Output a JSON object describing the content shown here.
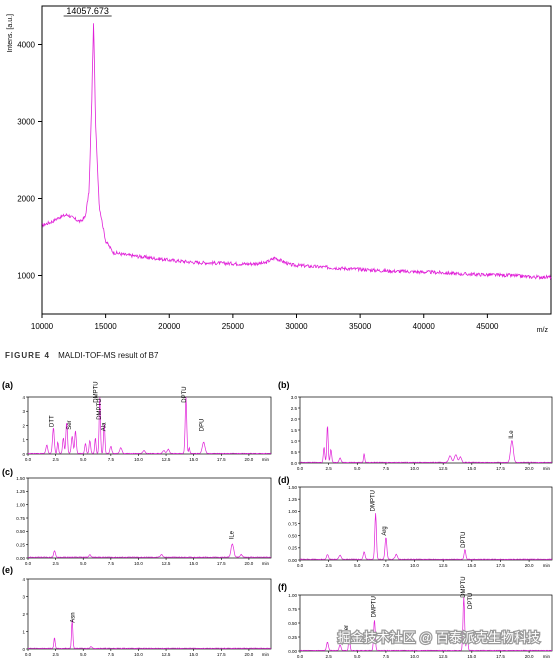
{
  "colors": {
    "trace": "#e020d8",
    "axis": "#000000",
    "grid": "#000000",
    "caption_label": "#333333"
  },
  "figure_caption": {
    "label": "FIGURE 4",
    "text": "MALDI-TOF-MS result of B7"
  },
  "watermark": {
    "text": "掘金技术社区 @ 百泰派克生物科技"
  },
  "chart_data": [
    {
      "id": "maldi",
      "type": "line",
      "ylabel": "Intens. [a.u.]",
      "xunit": "m/z",
      "xlim": [
        10000,
        50000
      ],
      "ylim": [
        500,
        4500
      ],
      "xticks": [
        10000,
        15000,
        20000,
        25000,
        30000,
        35000,
        40000,
        45000
      ],
      "yticks": [
        1000,
        2000,
        3000,
        4000
      ],
      "peak_label": "14057.673",
      "peak_x": 14057.673,
      "peak_y": 4350,
      "points": [
        [
          10000,
          1650
        ],
        [
          10800,
          1700
        ],
        [
          11400,
          1760
        ],
        [
          12000,
          1790
        ],
        [
          12500,
          1740
        ],
        [
          13000,
          1700
        ],
        [
          13400,
          1760
        ],
        [
          13700,
          2100
        ],
        [
          13900,
          3200
        ],
        [
          14057.673,
          4350
        ],
        [
          14200,
          3000
        ],
        [
          14500,
          1900
        ],
        [
          15000,
          1450
        ],
        [
          15600,
          1300
        ],
        [
          16500,
          1270
        ],
        [
          17500,
          1250
        ],
        [
          18500,
          1230
        ],
        [
          20000,
          1200
        ],
        [
          22000,
          1170
        ],
        [
          24000,
          1160
        ],
        [
          26000,
          1150
        ],
        [
          27500,
          1160
        ],
        [
          28300,
          1230
        ],
        [
          28700,
          1200
        ],
        [
          29500,
          1140
        ],
        [
          31000,
          1120
        ],
        [
          33000,
          1100
        ],
        [
          35000,
          1080
        ],
        [
          37000,
          1060
        ],
        [
          39000,
          1050
        ],
        [
          41000,
          1040
        ],
        [
          43000,
          1020
        ],
        [
          45000,
          1010
        ],
        [
          47000,
          1000
        ],
        [
          48500,
          980
        ],
        [
          50000,
          980
        ]
      ]
    },
    {
      "id": "a",
      "panel_label": "(a)",
      "type": "line",
      "xlim": [
        0,
        22
      ],
      "ylim": [
        0,
        4
      ],
      "xticks": [
        0.0,
        2.5,
        5.0,
        7.5,
        10.0,
        12.5,
        15.0,
        17.5,
        20.0
      ],
      "xtick_labels": [
        "0.0",
        "2.5",
        "5.0",
        "7.5",
        "10.0",
        "12.5",
        "15.0",
        "17.5",
        "20.0"
      ],
      "yticks": [
        0,
        1,
        2,
        3,
        4
      ],
      "ytick_labels": [
        "0",
        "1",
        "2",
        "3",
        "4"
      ],
      "xunit": "min",
      "annotations": [
        {
          "x": 2.3,
          "y": 1.9,
          "text": "DTT"
        },
        {
          "x": 3.9,
          "y": 1.7,
          "text": "Ser"
        },
        {
          "x": 6.3,
          "y": 3.6,
          "text": "DMPTU"
        },
        {
          "x": 6.6,
          "y": 2.4,
          "text": "DMPTU"
        },
        {
          "x": 7.0,
          "y": 1.6,
          "text": "Ala"
        },
        {
          "x": 14.3,
          "y": 3.6,
          "text": "DPTU"
        },
        {
          "x": 15.9,
          "y": 1.6,
          "text": "DPU"
        }
      ],
      "peaks": [
        [
          1.7,
          0.6,
          0.08
        ],
        [
          2.3,
          1.8,
          0.08
        ],
        [
          2.7,
          0.8,
          0.06
        ],
        [
          3.2,
          1.1,
          0.07
        ],
        [
          3.5,
          2.2,
          0.07
        ],
        [
          4.0,
          1.2,
          0.08
        ],
        [
          4.3,
          1.6,
          0.07
        ],
        [
          5.2,
          0.7,
          0.07
        ],
        [
          5.6,
          0.9,
          0.07
        ],
        [
          6.1,
          1.1,
          0.06
        ],
        [
          6.5,
          4.0,
          0.06
        ],
        [
          6.9,
          2.1,
          0.06
        ],
        [
          7.5,
          0.5,
          0.08
        ],
        [
          8.4,
          0.4,
          0.1
        ],
        [
          10.5,
          0.2,
          0.1
        ],
        [
          12.3,
          0.2,
          0.1
        ],
        [
          12.7,
          0.3,
          0.1
        ],
        [
          14.3,
          4.0,
          0.07
        ],
        [
          14.6,
          0.4,
          0.05
        ],
        [
          15.9,
          0.8,
          0.12
        ]
      ]
    },
    {
      "id": "b",
      "panel_label": "(b)",
      "type": "line",
      "xlim": [
        0,
        22
      ],
      "ylim": [
        0,
        3
      ],
      "xticks": [
        0.0,
        2.5,
        5.0,
        7.5,
        10.0,
        12.5,
        15.0,
        17.5,
        20.0
      ],
      "xtick_labels": [
        "0.0",
        "2.5",
        "5.0",
        "7.5",
        "10.0",
        "12.5",
        "15.0",
        "17.5",
        "20.0"
      ],
      "yticks": [
        0,
        0.5,
        1.0,
        1.5,
        2.0,
        2.5,
        3.0
      ],
      "ytick_labels": [
        "0.0",
        "0.5",
        "1.0",
        "1.5",
        "2.0",
        "2.5",
        "3.0"
      ],
      "xunit": "min",
      "annotations": [
        {
          "x": 18.6,
          "y": 1.1,
          "text": "ILe"
        }
      ],
      "peaks": [
        [
          2.1,
          0.7,
          0.06
        ],
        [
          2.4,
          1.7,
          0.06
        ],
        [
          2.7,
          0.6,
          0.06
        ],
        [
          3.5,
          0.2,
          0.08
        ],
        [
          5.6,
          0.4,
          0.05
        ],
        [
          13.1,
          0.3,
          0.12
        ],
        [
          13.6,
          0.35,
          0.12
        ],
        [
          14.0,
          0.25,
          0.1
        ],
        [
          18.5,
          1.0,
          0.12
        ]
      ]
    },
    {
      "id": "c",
      "panel_label": "(c)",
      "type": "line",
      "xlim": [
        0,
        22
      ],
      "ylim": [
        0,
        1.5
      ],
      "xticks": [
        0.0,
        2.5,
        5.0,
        7.5,
        10.0,
        12.5,
        15.0,
        17.5,
        20.0
      ],
      "xtick_labels": [
        "0.0",
        "2.5",
        "5.0",
        "7.5",
        "10.0",
        "12.5",
        "15.0",
        "17.5",
        "20.0"
      ],
      "yticks": [
        0,
        0.25,
        0.5,
        0.75,
        1.0,
        1.25,
        1.5
      ],
      "ytick_labels": [
        "0.00",
        "0.25",
        "0.50",
        "0.75",
        "1.00",
        "1.25",
        "1.50"
      ],
      "xunit": "min",
      "annotations": [
        {
          "x": 18.6,
          "y": 0.35,
          "text": "ILe"
        }
      ],
      "peaks": [
        [
          2.4,
          0.12,
          0.08
        ],
        [
          5.6,
          0.05,
          0.08
        ],
        [
          12.1,
          0.05,
          0.1
        ],
        [
          18.5,
          0.25,
          0.12
        ],
        [
          19.3,
          0.05,
          0.1
        ]
      ]
    },
    {
      "id": "d",
      "panel_label": "(d)",
      "type": "line",
      "xlim": [
        0,
        22
      ],
      "ylim": [
        0,
        1.5
      ],
      "xticks": [
        0.0,
        2.5,
        5.0,
        7.5,
        10.0,
        12.5,
        15.0,
        17.5,
        20.0
      ],
      "xtick_labels": [
        "0.0",
        "2.5",
        "5.0",
        "7.5",
        "10.0",
        "12.5",
        "15.0",
        "17.5",
        "20.0"
      ],
      "yticks": [
        0,
        0.25,
        0.5,
        0.75,
        1.0,
        1.25,
        1.5
      ],
      "ytick_labels": [
        "0.00",
        "0.25",
        "0.50",
        "0.75",
        "1.00",
        "1.25",
        "1.50"
      ],
      "xunit": "min",
      "annotations": [
        {
          "x": 6.5,
          "y": 1.0,
          "text": "DMPTU"
        },
        {
          "x": 7.5,
          "y": 0.5,
          "text": "Arg"
        },
        {
          "x": 14.4,
          "y": 0.25,
          "text": "DPTU"
        }
      ],
      "peaks": [
        [
          2.4,
          0.1,
          0.08
        ],
        [
          3.5,
          0.08,
          0.1
        ],
        [
          5.6,
          0.15,
          0.08
        ],
        [
          6.6,
          0.95,
          0.07
        ],
        [
          7.5,
          0.45,
          0.08
        ],
        [
          8.4,
          0.1,
          0.1
        ],
        [
          14.4,
          0.2,
          0.07
        ]
      ]
    },
    {
      "id": "e",
      "panel_label": "(e)",
      "type": "line",
      "xlim": [
        0,
        22
      ],
      "ylim": [
        0,
        4
      ],
      "xticks": [
        0.0,
        2.5,
        5.0,
        7.5,
        10.0,
        12.5,
        15.0,
        17.5,
        20.0
      ],
      "xtick_labels": [
        "0.0",
        "2.5",
        "5.0",
        "7.5",
        "10.0",
        "12.5",
        "15.0",
        "17.5",
        "20.0"
      ],
      "yticks": [
        0,
        1,
        2,
        3,
        4
      ],
      "ytick_labels": [
        "0",
        "1",
        "2",
        "3",
        "4"
      ],
      "xunit": "min",
      "annotations": [
        {
          "x": 4.2,
          "y": 1.5,
          "text": "Asn"
        }
      ],
      "peaks": [
        [
          2.4,
          0.6,
          0.06
        ],
        [
          4.0,
          1.6,
          0.06
        ],
        [
          5.7,
          0.1,
          0.08
        ]
      ]
    },
    {
      "id": "f",
      "panel_label": "(f)",
      "type": "line",
      "xlim": [
        0,
        22
      ],
      "ylim": [
        0,
        1.0
      ],
      "xticks": [
        0.0,
        2.5,
        5.0,
        7.5,
        10.0,
        12.5,
        15.0,
        17.5,
        20.0
      ],
      "xtick_labels": [
        "0.0",
        "2.5",
        "5.0",
        "7.5",
        "10.0",
        "12.5",
        "15.0",
        "17.5",
        "20.0"
      ],
      "yticks": [
        0,
        0.25,
        0.5,
        0.75,
        1.0
      ],
      "ytick_labels": [
        "0.00",
        "0.25",
        "0.50",
        "0.75",
        "1.00"
      ],
      "xunit": "min",
      "annotations": [
        {
          "x": 4.2,
          "y": 0.3,
          "text": "Ser"
        },
        {
          "x": 6.6,
          "y": 0.6,
          "text": "DMPTU"
        },
        {
          "x": 14.4,
          "y": 0.95,
          "text": "DMPTU"
        },
        {
          "x": 15.0,
          "y": 0.75,
          "text": "DPTU"
        }
      ],
      "peaks": [
        [
          2.4,
          0.15,
          0.08
        ],
        [
          3.5,
          0.1,
          0.08
        ],
        [
          4.3,
          0.25,
          0.06
        ],
        [
          6.5,
          0.55,
          0.07
        ],
        [
          14.3,
          0.95,
          0.07
        ],
        [
          14.6,
          0.3,
          0.06
        ]
      ]
    }
  ]
}
